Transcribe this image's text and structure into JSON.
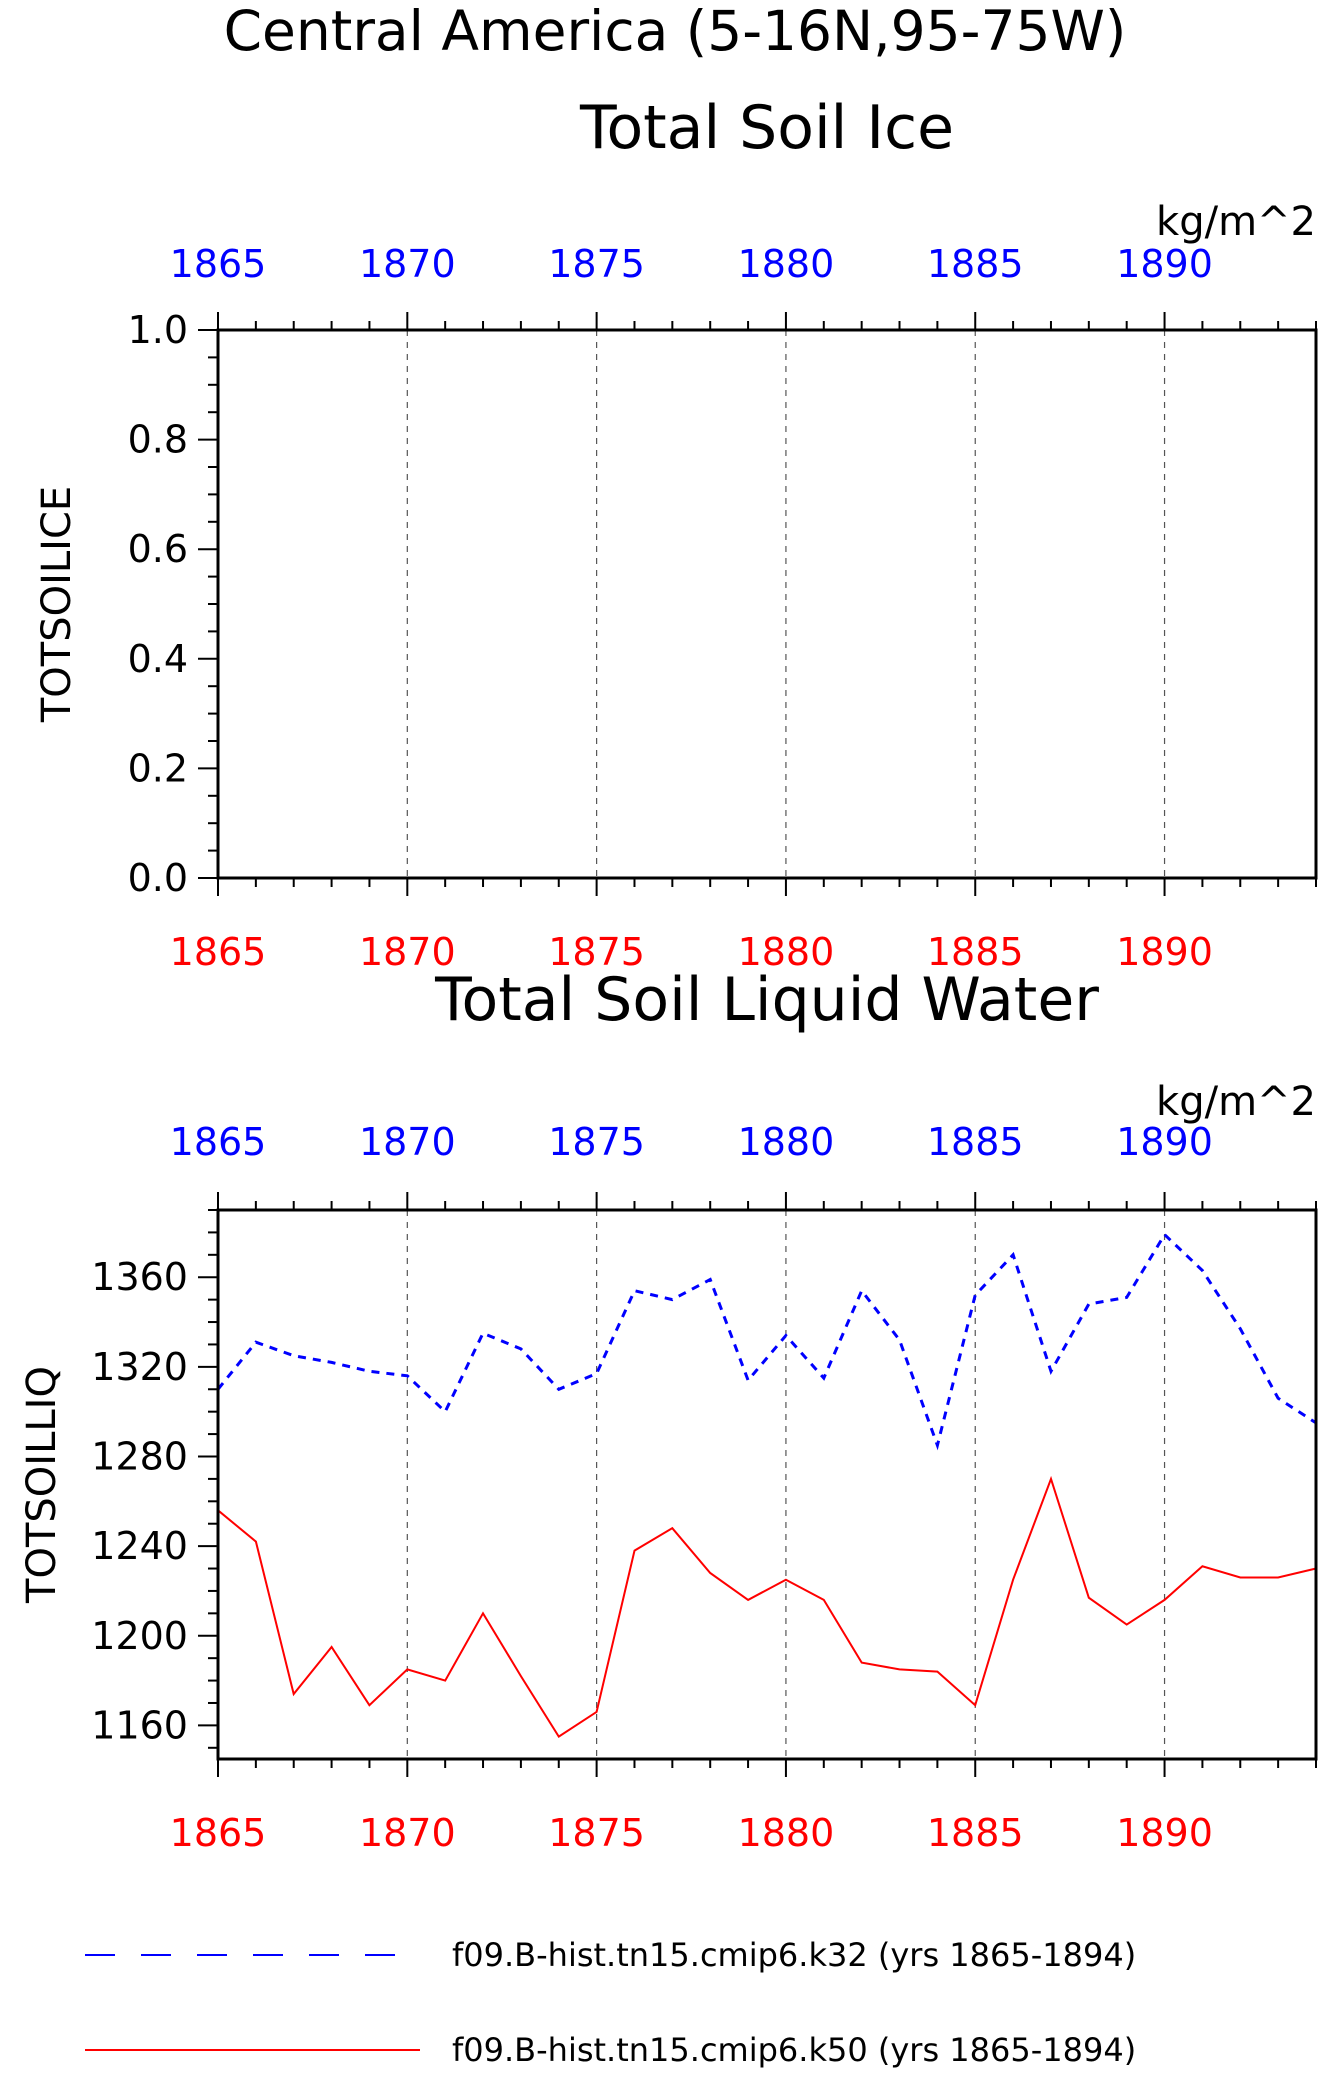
{
  "figure_title": "Central America (5-16N,95-75W)",
  "colors": {
    "run1": "#0000ff",
    "run2": "#ff0000",
    "axis": "#000000",
    "grid": "#555555"
  },
  "legend": {
    "entries": [
      {
        "label": "f09.B-hist.tn15.cmip6.k32 (yrs 1865-1894)",
        "color": "#0000ff",
        "style": "dashed"
      },
      {
        "label": "f09.B-hist.tn15.cmip6.k50 (yrs 1865-1894)",
        "color": "#ff0000",
        "style": "solid"
      }
    ]
  },
  "chart_data": [
    {
      "type": "line",
      "title": "Total Soil Ice",
      "units": "kg/m^2",
      "ylabel": "TOTSOILICE",
      "xlim": [
        1865,
        1894
      ],
      "ylim": [
        0,
        1
      ],
      "x_ticks": [
        1865,
        1870,
        1875,
        1880,
        1885,
        1890
      ],
      "x_tick_labels": [
        "1865",
        "1870",
        "1875",
        "1880",
        "1885",
        "1890"
      ],
      "y_ticks": [
        0,
        0.2,
        0.4,
        0.6,
        0.8,
        1.0
      ],
      "y_tick_labels": [
        "0.0",
        "0.2",
        "0.4",
        "0.6",
        "0.8",
        "1.0"
      ],
      "grid": "vertical dashed at major x ticks",
      "series": []
    },
    {
      "type": "line",
      "title": "Total Soil Liquid Water",
      "units": "kg/m^2",
      "ylabel": "TOTSOILLIQ",
      "xlim": [
        1865,
        1894
      ],
      "ylim": [
        1145,
        1390
      ],
      "x_ticks": [
        1865,
        1870,
        1875,
        1880,
        1885,
        1890
      ],
      "x_tick_labels": [
        "1865",
        "1870",
        "1875",
        "1880",
        "1885",
        "1890"
      ],
      "y_ticks": [
        1160,
        1200,
        1240,
        1280,
        1320,
        1360
      ],
      "y_tick_labels": [
        "1160",
        "1200",
        "1240",
        "1280",
        "1320",
        "1360"
      ],
      "grid": "vertical dashed at major x ticks",
      "x": [
        1865,
        1866,
        1867,
        1868,
        1869,
        1870,
        1871,
        1872,
        1873,
        1874,
        1875,
        1876,
        1877,
        1878,
        1879,
        1880,
        1881,
        1882,
        1883,
        1884,
        1885,
        1886,
        1887,
        1888,
        1889,
        1890,
        1891,
        1892,
        1893,
        1894
      ],
      "series": [
        {
          "color": "#0000ff",
          "style": "dashed",
          "values": [
            1310,
            1331,
            1325,
            1322,
            1318,
            1316,
            1300,
            1335,
            1328,
            1310,
            1317,
            1354,
            1350,
            1359,
            1314,
            1334,
            1315,
            1354,
            1332,
            1285,
            1352,
            1370,
            1318,
            1348,
            1351,
            1379,
            1363,
            1337,
            1306,
            1295
          ]
        },
        {
          "color": "#ff0000",
          "style": "solid",
          "values": [
            1256,
            1242,
            1174,
            1195,
            1169,
            1185,
            1180,
            1210,
            1182,
            1155,
            1166,
            1238,
            1248,
            1228,
            1216,
            1225,
            1216,
            1188,
            1185,
            1184,
            1169,
            1225,
            1270,
            1217,
            1205,
            1216,
            1231,
            1226,
            1226,
            1230
          ]
        }
      ]
    }
  ]
}
